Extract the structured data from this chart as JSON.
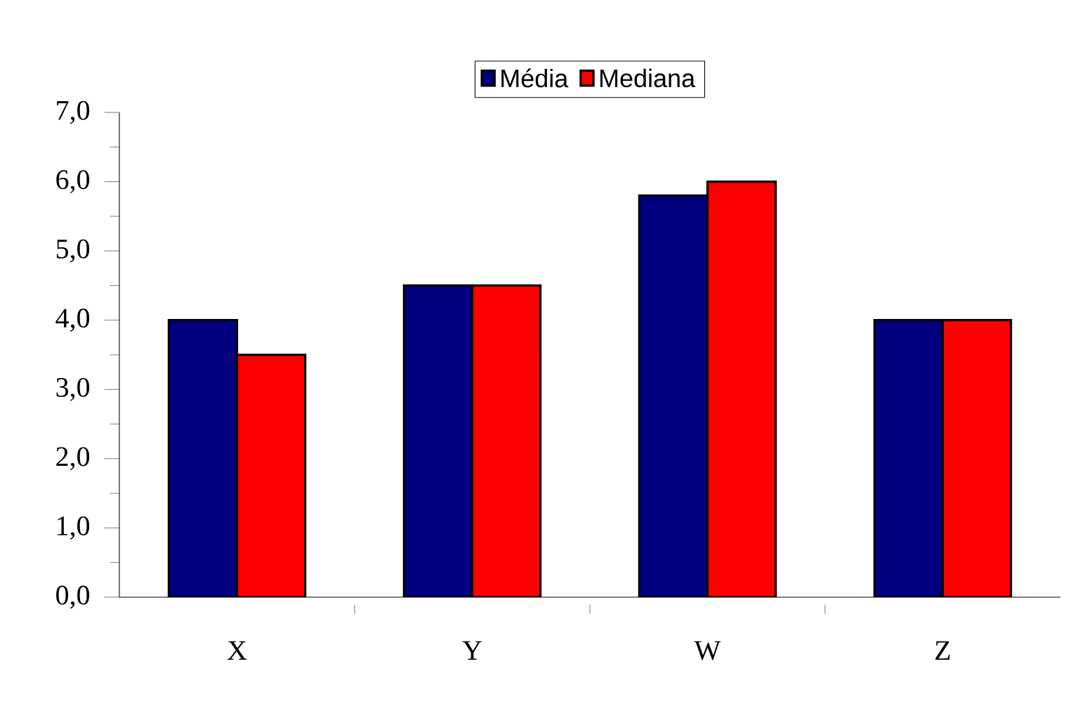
{
  "chart_data": {
    "type": "bar",
    "categories": [
      "X",
      "Y",
      "W",
      "Z"
    ],
    "series": [
      {
        "name": "Média",
        "color": "#000080",
        "values": [
          4.0,
          4.5,
          5.8,
          4.0
        ]
      },
      {
        "name": "Mediana",
        "color": "#ff0000",
        "values": [
          3.5,
          4.5,
          6.0,
          4.0
        ]
      }
    ],
    "ylim": [
      0,
      7
    ],
    "yticks": [
      {
        "value": 0,
        "label": "0,0"
      },
      {
        "value": 1,
        "label": "1,0"
      },
      {
        "value": 2,
        "label": "2,0"
      },
      {
        "value": 3,
        "label": "3,0"
      },
      {
        "value": 4,
        "label": "4,0"
      },
      {
        "value": 5,
        "label": "5,0"
      },
      {
        "value": 6,
        "label": "6,0"
      },
      {
        "value": 7,
        "label": "7,0"
      }
    ],
    "grid": false,
    "legend": "top"
  }
}
